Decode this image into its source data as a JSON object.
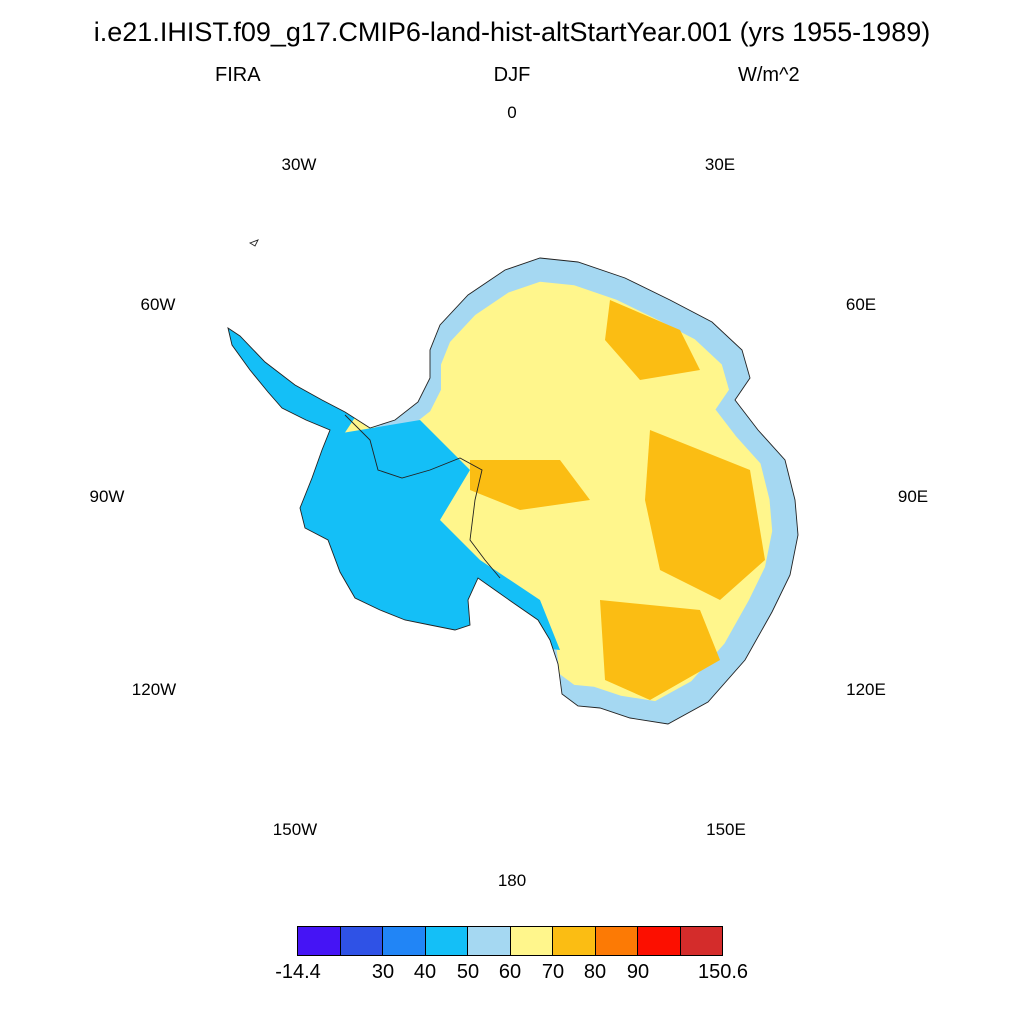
{
  "header": {
    "title": "i.e21.IHIST.f09_g17.CMIP6-land-hist-altStartYear.001 (yrs 1955-1989)",
    "variable": "FIRA",
    "season": "DJF",
    "units": "W/m^2"
  },
  "map": {
    "projection": "south-polar-stereographic",
    "region": "Antarctica",
    "longitude_labels": {
      "l0": "0",
      "l30e": "30E",
      "l60e": "60E",
      "l90e": "90E",
      "l120e": "120E",
      "l150e": "150E",
      "l180": "180",
      "l150w": "150W",
      "l120w": "120W",
      "l90w": "90W",
      "l60w": "60W",
      "l30w": "30W"
    }
  },
  "colorbar": {
    "colors": [
      "#4514f5",
      "#2f52e6",
      "#2185f6",
      "#14bff7",
      "#a5d8f2",
      "#fff68c",
      "#fbbd13",
      "#fc7a05",
      "#fc0f00",
      "#d42c2b"
    ],
    "labels": {
      "l0": "-14.4",
      "l2": "30",
      "l3": "40",
      "l4": "50",
      "l5": "60",
      "l6": "70",
      "l7": "80",
      "l8": "90",
      "l10": "150.6"
    }
  }
}
